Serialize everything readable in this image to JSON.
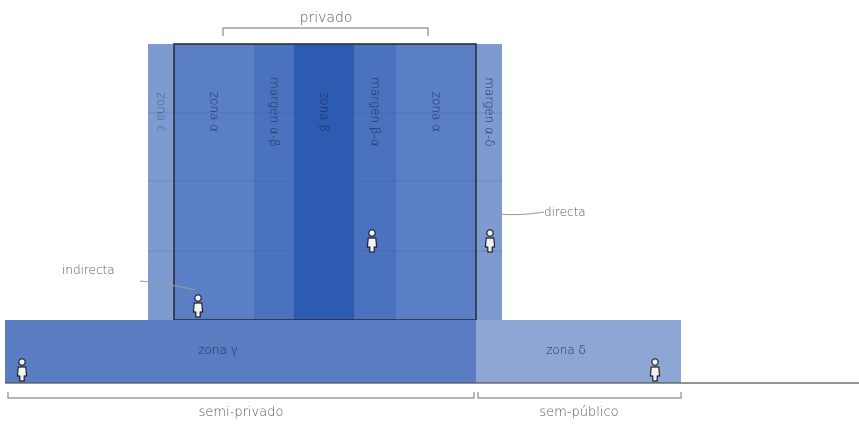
{
  "labels": {
    "top_bracket": "privado",
    "bottom_left_bracket": "semi-privado",
    "bottom_right_bracket": "sem-público",
    "callout_left": "indirecta",
    "callout_right": "directa",
    "ground_left": "zona γ",
    "ground_right": "zona δ"
  },
  "columns": [
    "zona ε",
    "zona α",
    "margen α-β",
    "zona β",
    "margen β-α",
    "zona α",
    "margen α-δ"
  ],
  "colors": {
    "outer_light": "#7d9bd0",
    "zone_alpha": "#5a7fc4",
    "margin": "#4b72bf",
    "zone_beta": "#2e5bb2",
    "ground_left": "#5a7cc0",
    "ground_right": "#8ea6d4",
    "outline": "#2b2f3a",
    "grid_line": "#3d5a94",
    "text_on_blue": "#1d2d55",
    "text_dark": "#555555",
    "bracket": "#8a8a8a"
  },
  "icons": {
    "person": "person-figure-icon"
  }
}
